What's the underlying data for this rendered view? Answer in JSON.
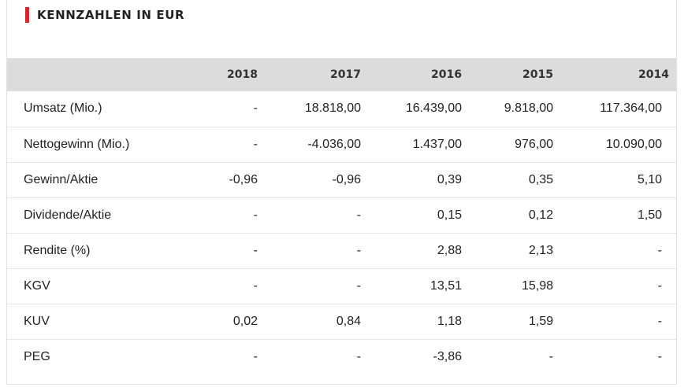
{
  "heading": {
    "title": "KENNZAHLEN IN EUR",
    "accent_color": "#e3202b"
  },
  "table": {
    "header_background": "#dcdcdc",
    "columns": [
      "",
      "2018",
      "2017",
      "2016",
      "2015",
      "2014"
    ],
    "rows": [
      {
        "label": "Umsatz (Mio.)",
        "values": [
          "-",
          "18.818,00",
          "16.439,00",
          "9.818,00",
          "117.364,00"
        ]
      },
      {
        "label": "Nettogewinn (Mio.)",
        "values": [
          "-",
          "-4.036,00",
          "1.437,00",
          "976,00",
          "10.090,00"
        ]
      },
      {
        "label": "Gewinn/Aktie",
        "values": [
          "-0,96",
          "-0,96",
          "0,39",
          "0,35",
          "5,10"
        ]
      },
      {
        "label": "Dividende/Aktie",
        "values": [
          "-",
          "-",
          "0,15",
          "0,12",
          "1,50"
        ]
      },
      {
        "label": "Rendite (%)",
        "values": [
          "-",
          "-",
          "2,88",
          "2,13",
          "-"
        ]
      },
      {
        "label": "KGV",
        "values": [
          "-",
          "-",
          "13,51",
          "15,98",
          "-"
        ]
      },
      {
        "label": "KUV",
        "values": [
          "0,02",
          "0,84",
          "1,18",
          "1,59",
          "-"
        ]
      },
      {
        "label": "PEG",
        "values": [
          "-",
          "-",
          "-3,86",
          "-",
          "-"
        ]
      }
    ]
  }
}
